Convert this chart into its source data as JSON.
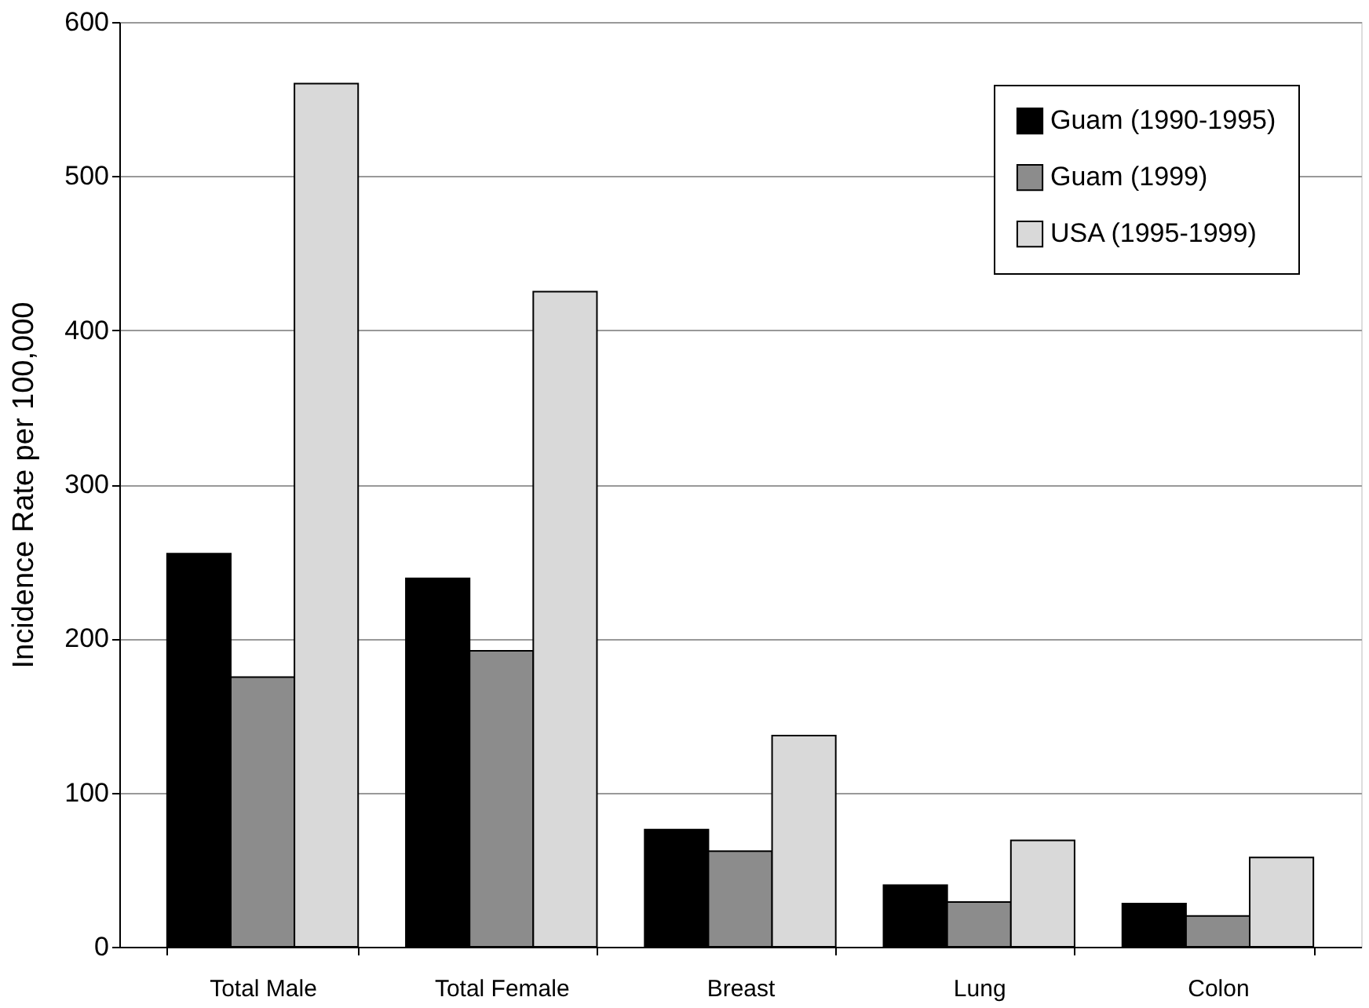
{
  "chart_data": {
    "type": "bar",
    "ylabel": "Incidence Rate per 100,000",
    "categories": [
      "Total Male",
      "Total Female",
      "Breast",
      "Lung",
      "Colon"
    ],
    "series": [
      {
        "name": "Guam (1990-1995)",
        "color": "#000000",
        "values": [
          255,
          239,
          76,
          40,
          28
        ]
      },
      {
        "name": "Guam (1999)",
        "color": "#8c8c8c",
        "values": [
          175,
          192,
          62,
          29,
          20
        ]
      },
      {
        "name": "USA (1995-1999)",
        "color": "#d9d9d9",
        "values": [
          560,
          425,
          137,
          69,
          58
        ]
      }
    ],
    "ylim": [
      0,
      600
    ],
    "yticks": [
      0,
      100,
      200,
      300,
      400,
      500,
      600
    ],
    "grid": "y",
    "legend": "top right"
  }
}
